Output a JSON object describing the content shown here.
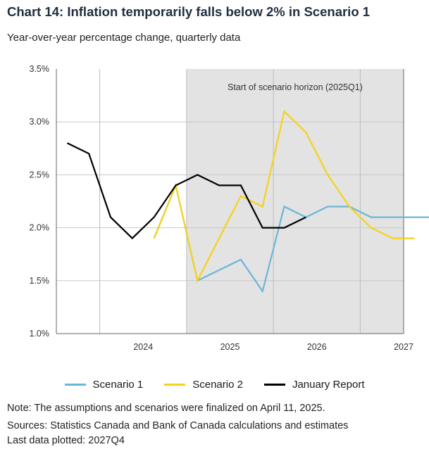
{
  "header": {
    "title": "Chart 14: Inflation temporarily falls below 2% in Scenario 1",
    "subtitle": "Year-over-year percentage change, quarterly data"
  },
  "chart_data": {
    "type": "line",
    "title": "Chart 14: Inflation temporarily falls below 2% in Scenario 1",
    "subtitle": "Year-over-year percentage change, quarterly data",
    "xlabel": "",
    "ylabel": "",
    "ylim": [
      1.0,
      3.5
    ],
    "yticks": [
      1.0,
      1.5,
      2.0,
      2.5,
      3.0,
      3.5
    ],
    "ytick_labels": [
      "1.0%",
      "1.5%",
      "2.0%",
      "2.5%",
      "3.0%",
      "3.5%"
    ],
    "xtick_labels": [
      "2024",
      "2025",
      "2026",
      "2027"
    ],
    "quarters": [
      "2023Q3",
      "2023Q4",
      "2024Q1",
      "2024Q2",
      "2024Q3",
      "2024Q4",
      "2025Q1",
      "2025Q2",
      "2025Q3",
      "2025Q4",
      "2026Q1",
      "2026Q2",
      "2026Q3",
      "2026Q4",
      "2027Q1",
      "2027Q2",
      "2027Q3",
      "2027Q4"
    ],
    "shaded_region": {
      "start": "2025Q1",
      "end": "2027Q4",
      "label": "Start of scenario horizon (2025Q1)"
    },
    "series": [
      {
        "name": "Scenario 1",
        "color": "#6bb6d8",
        "values": [
          null,
          null,
          null,
          null,
          1.9,
          2.4,
          1.5,
          1.6,
          1.7,
          1.4,
          2.2,
          2.1,
          2.2,
          2.2,
          2.1,
          2.1,
          2.1,
          2.1
        ]
      },
      {
        "name": "Scenario 2",
        "color": "#f6d21a",
        "values": [
          null,
          null,
          null,
          null,
          1.9,
          2.4,
          1.5,
          1.9,
          2.3,
          2.2,
          3.1,
          2.9,
          2.5,
          2.2,
          2.0,
          1.9,
          1.9,
          null
        ]
      },
      {
        "name": "January Report",
        "color": "#000000",
        "values": [
          2.8,
          2.7,
          2.1,
          1.9,
          2.1,
          2.4,
          2.5,
          2.4,
          2.4,
          2.0,
          2.0,
          2.1,
          null,
          null,
          null,
          null,
          null,
          null
        ]
      }
    ]
  },
  "legend": [
    {
      "name": "Scenario 1",
      "color": "#6bb6d8"
    },
    {
      "name": "Scenario 2",
      "color": "#f6d21a"
    },
    {
      "name": "January Report",
      "color": "#000000"
    }
  ],
  "notes": {
    "note": "Note: The assumptions and scenarios were finalized on April 11, 2025.",
    "sources": "Sources: Statistics Canada and Bank of Canada calculations and estimates",
    "last": "Last data plotted: 2027Q4"
  }
}
